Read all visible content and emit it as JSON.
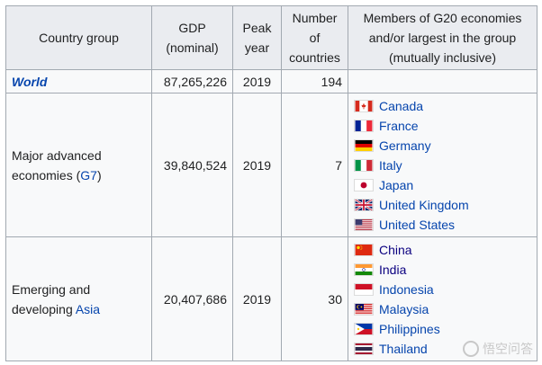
{
  "headers": {
    "country_group": "Country group",
    "gdp": "GDP (nominal)",
    "peak_year": "Peak year",
    "num_countries": "Number of countries",
    "members": "Members of G20 economies and/or largest in the group (mutually inclusive)"
  },
  "rows": {
    "world": {
      "name": "World",
      "gdp": "87,265,226",
      "year": "2019",
      "count": "194"
    },
    "g7": {
      "name_prefix": "Major advanced economies (",
      "name_link": "G7",
      "name_suffix": ")",
      "gdp": "39,840,524",
      "year": "2019",
      "count": "7",
      "members": [
        {
          "name": "Canada",
          "flag": "canada-flag"
        },
        {
          "name": "France",
          "flag": "france-flag"
        },
        {
          "name": "Germany",
          "flag": "germany-flag"
        },
        {
          "name": "Italy",
          "flag": "italy-flag"
        },
        {
          "name": "Japan",
          "flag": "japan-flag"
        },
        {
          "name": "United Kingdom",
          "flag": "uk-flag"
        },
        {
          "name": "United States",
          "flag": "usa-flag"
        }
      ]
    },
    "asia": {
      "name_prefix": "Emerging and developing ",
      "name_link": "Asia",
      "gdp": "20,407,686",
      "year": "2019",
      "count": "30",
      "members": [
        {
          "name": "China",
          "flag": "china-flag"
        },
        {
          "name": "India",
          "flag": "india-flag"
        },
        {
          "name": "Indonesia",
          "flag": "indonesia-flag"
        },
        {
          "name": "Malaysia",
          "flag": "malaysia-flag"
        },
        {
          "name": "Philippines",
          "flag": "philippines-flag"
        },
        {
          "name": "Thailand",
          "flag": "thailand-flag"
        }
      ]
    }
  },
  "watermark": "悟空问答",
  "colors": {
    "link": "#0645ad",
    "visited": "#0b0080",
    "header_bg": "#eaecf0",
    "cell_bg": "#f8f9fa",
    "border": "#a2a9b1"
  }
}
